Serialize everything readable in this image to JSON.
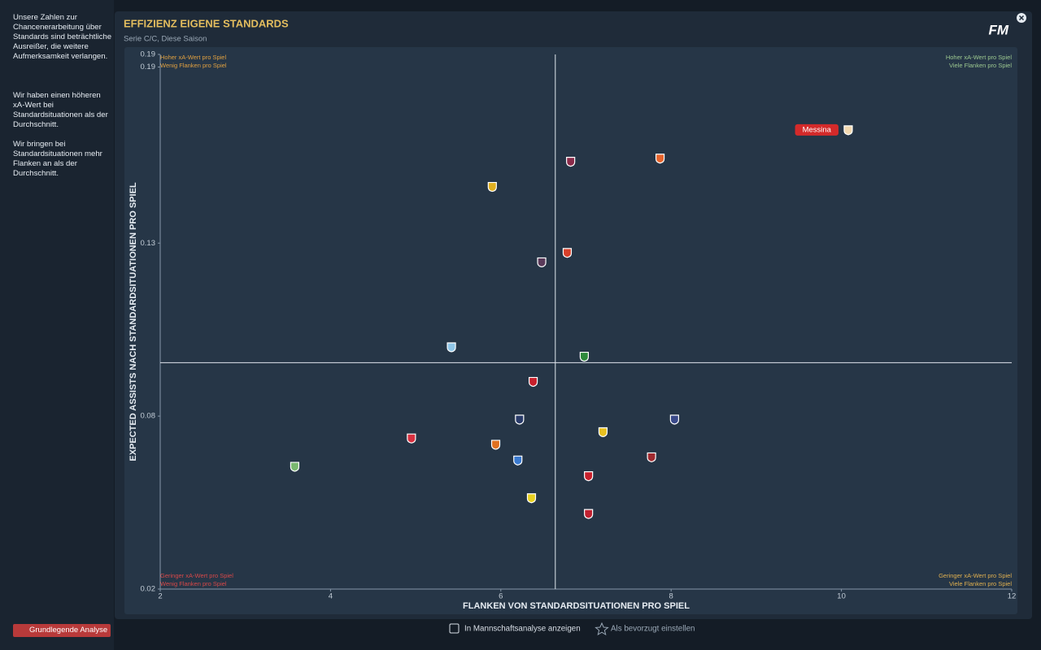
{
  "sidebar": {
    "paragraphs": [
      "Unsere Zahlen zur Chancenerarbeitung über Standards sind beträchtliche Ausreißer, die weitere Aufmerksamkeit verlangen.",
      "Wir haben einen höheren xA-Wert bei Standardsituationen als der Durchschnitt.",
      "Wir bringen bei Standardsituationen mehr Flanken an als der Durchschnitt."
    ],
    "button": "Grundlegende Analyse"
  },
  "header": {
    "title": "EFFIZIENZ EIGENE STANDARDS",
    "subtitle": "Serie C/C, Diese Saison",
    "logo": "FM"
  },
  "footer": {
    "checkbox": "In Mannschaftsanalyse anzeigen",
    "favorite": "Als bevorzugt einstellen"
  },
  "chart_data": {
    "type": "scatter",
    "xlabel": "FLANKEN VON STANDARDSITUATIONEN PRO SPIEL",
    "ylabel": "EXPECTED ASSISTS NACH STANDARDSITUATIONEN PRO SPIEL",
    "xlim": [
      2,
      12
    ],
    "xticks": [
      2,
      4,
      6,
      8,
      10,
      12
    ],
    "ylim": [
      0.02,
      0.19
    ],
    "yticks": [
      0.02,
      {
        "value": 0.075,
        "label": "0.08"
      },
      0.13,
      {
        "value": 0.186,
        "label": "0.19"
      },
      0.19
    ],
    "average_x": 6.64,
    "average_y": 0.092,
    "quadrants": {
      "top_left": [
        "Hoher xA-Wert pro Spiel",
        "Wenig Flanken pro Spiel"
      ],
      "top_right": [
        "Hoher xA-Wert pro Spiel",
        "Viele Flanken pro Spiel"
      ],
      "bottom_left": [
        "Geringer xA-Wert pro Spiel",
        "Wenig Flanken pro Spiel"
      ],
      "bottom_right": [
        "Geringer xA-Wert pro Spiel",
        "Viele Flanken pro Spiel"
      ]
    },
    "labels": [
      "Messina",
      null,
      null,
      null,
      null,
      null,
      null,
      null,
      null,
      null,
      null,
      null,
      null,
      null,
      null,
      null,
      null,
      null,
      null,
      null
    ],
    "x": [
      10.08,
      6.82,
      7.87,
      5.9,
      6.78,
      6.48,
      5.42,
      6.98,
      6.38,
      6.22,
      8.04,
      7.2,
      4.95,
      5.94,
      3.58,
      6.2,
      7.77,
      7.03,
      6.36,
      7.03
    ],
    "y": [
      0.166,
      0.156,
      0.157,
      0.148,
      0.127,
      0.124,
      0.097,
      0.094,
      0.086,
      0.074,
      0.074,
      0.07,
      0.068,
      0.066,
      0.059,
      0.061,
      0.062,
      0.056,
      0.049,
      0.044
    ],
    "colors": [
      "#f2d9b0",
      "#8a2b4a",
      "#e8642c",
      "#e0b020",
      "#d8402a",
      "#5a3a5a",
      "#8fc6e8",
      "#2e8a3c",
      "#c8202c",
      "#2a3c6a",
      "#3a4a8a",
      "#e8c020",
      "#d83040",
      "#e07020",
      "#7ab870",
      "#3a7ad0",
      "#a02a30",
      "#c8202c",
      "#e8d020",
      "#c02030"
    ],
    "highlight_color": "#d42a2a"
  }
}
